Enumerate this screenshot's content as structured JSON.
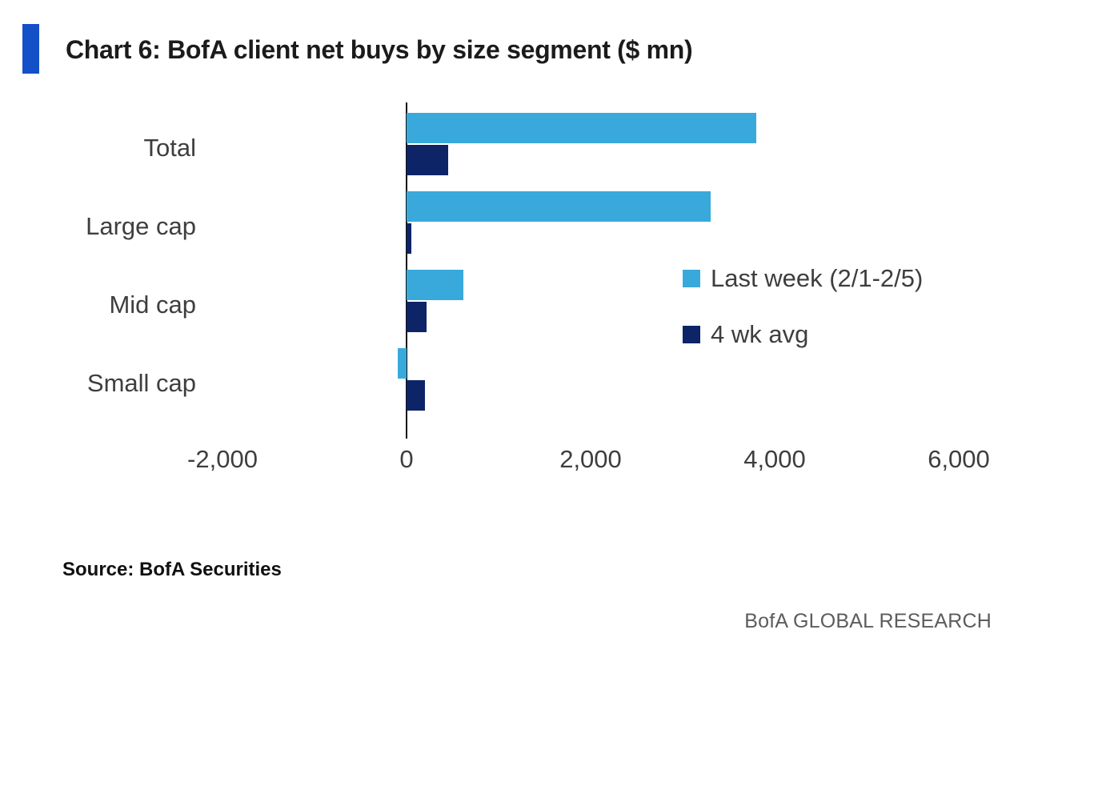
{
  "header": {
    "title": "Chart 6: BofA client net buys by size segment ($ mn)",
    "accent_color": "#1450C8"
  },
  "chart_data": {
    "type": "bar",
    "orientation": "horizontal",
    "title": "Chart 6: BofA client net buys by size segment ($ mn)",
    "categories": [
      "Total",
      "Large cap",
      "Mid cap",
      "Small cap"
    ],
    "series": [
      {
        "name": "Last week (2/1-2/5)",
        "color": "#39A9DC",
        "values": [
          3800,
          3300,
          620,
          -100
        ]
      },
      {
        "name": "4 wk avg",
        "color": "#0D2467",
        "values": [
          450,
          50,
          220,
          200
        ]
      }
    ],
    "xlim": [
      -2000,
      6000
    ],
    "x_ticks": [
      -2000,
      0,
      2000,
      4000,
      6000
    ],
    "x_tick_labels": [
      "-2,000",
      "0",
      "2,000",
      "4,000",
      "6,000"
    ],
    "xlabel": "",
    "ylabel": "",
    "grid": false,
    "legend_position": "center-right"
  },
  "footer": {
    "source": "Source: BofA Securities",
    "branding": "BofA GLOBAL RESEARCH"
  }
}
